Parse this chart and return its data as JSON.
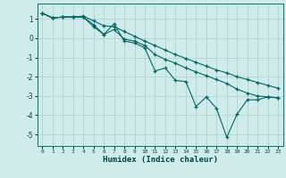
{
  "xlabel": "Humidex (Indice chaleur)",
  "bg_color": "#d0ecea",
  "grid_color": "#b0d4d0",
  "line_color": "#006666",
  "xlim": [
    -0.5,
    23.5
  ],
  "ylim": [
    -5.6,
    1.8
  ],
  "yticks": [
    1,
    0,
    -1,
    -2,
    -3,
    -4,
    -5
  ],
  "xticks": [
    0,
    1,
    2,
    3,
    4,
    5,
    6,
    7,
    8,
    9,
    10,
    11,
    12,
    13,
    14,
    15,
    16,
    17,
    18,
    19,
    20,
    21,
    22,
    23
  ],
  "line1_x": [
    0,
    1,
    2,
    3,
    4,
    5,
    6,
    7,
    8,
    9,
    10,
    11,
    12,
    13,
    14,
    15,
    16,
    17,
    18,
    19,
    20,
    21,
    22,
    23
  ],
  "line1_y": [
    1.3,
    1.05,
    1.1,
    1.1,
    1.15,
    0.9,
    0.65,
    0.6,
    0.35,
    0.1,
    -0.15,
    -0.38,
    -0.62,
    -0.85,
    -1.05,
    -1.25,
    -1.45,
    -1.65,
    -1.8,
    -2.0,
    -2.15,
    -2.3,
    -2.45,
    -2.6
  ],
  "line2_x": [
    0,
    1,
    2,
    3,
    4,
    5,
    6,
    7,
    8,
    9,
    10,
    11,
    12,
    13,
    14,
    15,
    16,
    17,
    18,
    19,
    20,
    21,
    22,
    23
  ],
  "line2_y": [
    1.3,
    1.05,
    1.1,
    1.1,
    1.1,
    0.6,
    0.2,
    0.75,
    -0.15,
    -0.25,
    -0.5,
    -1.7,
    -1.55,
    -2.2,
    -2.25,
    -3.55,
    -3.05,
    -3.65,
    -5.15,
    -3.95,
    -3.2,
    -3.2,
    -3.05,
    -3.1
  ],
  "line3_x": [
    0,
    1,
    2,
    3,
    4,
    5,
    6,
    7,
    8,
    9,
    10,
    11,
    12,
    13,
    14,
    15,
    16,
    17,
    18,
    19,
    20,
    21,
    22,
    23
  ],
  "line3_y": [
    1.3,
    1.05,
    1.1,
    1.1,
    1.1,
    0.7,
    0.2,
    0.45,
    -0.05,
    -0.15,
    -0.38,
    -0.85,
    -1.1,
    -1.3,
    -1.55,
    -1.75,
    -1.95,
    -2.15,
    -2.35,
    -2.65,
    -2.85,
    -3.0,
    -3.05,
    -3.1
  ]
}
